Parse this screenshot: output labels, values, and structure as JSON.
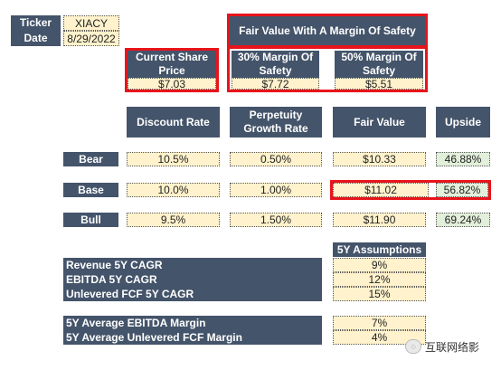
{
  "ticker": {
    "ticker_label": "Ticker",
    "date_label": "Date",
    "ticker_value": "XIACY",
    "date_value": "8/29/2022"
  },
  "fair_value_header": "Fair Value With A Margin Of Safety",
  "current_price": {
    "label": "Current Share Price",
    "value": "$7.03"
  },
  "mos30": {
    "label": "30% Margin Of Safety",
    "value": "$7.72"
  },
  "mos50": {
    "label": "50% Margin Of Safety",
    "value": "$5.51"
  },
  "columns": {
    "discount_rate": "Discount Rate",
    "perpetuity": "Perpetuity Growth Rate",
    "fair_value": "Fair Value",
    "upside": "Upside"
  },
  "scenarios": [
    {
      "name": "Bear",
      "discount_rate": "10.5%",
      "perpetuity": "0.50%",
      "fair_value": "$10.33",
      "upside": "46.88%"
    },
    {
      "name": "Base",
      "discount_rate": "10.0%",
      "perpetuity": "1.00%",
      "fair_value": "$11.02",
      "upside": "56.82%"
    },
    {
      "name": "Bull",
      "discount_rate": "9.5%",
      "perpetuity": "1.50%",
      "fair_value": "$11.90",
      "upside": "69.24%"
    }
  ],
  "assumptions_header": "5Y Assumptions",
  "cagr_rows": [
    {
      "label": "Revenue 5Y CAGR",
      "value": "9%"
    },
    {
      "label": "EBITDA 5Y CAGR",
      "value": "12%"
    },
    {
      "label": "Unlevered FCF 5Y CAGR",
      "value": "15%"
    }
  ],
  "margin_rows": [
    {
      "label": "5Y Average EBITDA Margin",
      "value": "7%"
    },
    {
      "label": "5Y Average Unlevered FCF Margin",
      "value": "4%"
    }
  ],
  "watermark": "互联网络影",
  "highlight_color": "#e8141b",
  "header_color": "#44546a",
  "input_color": "#fff2cc",
  "upside_color": "#e2efda"
}
